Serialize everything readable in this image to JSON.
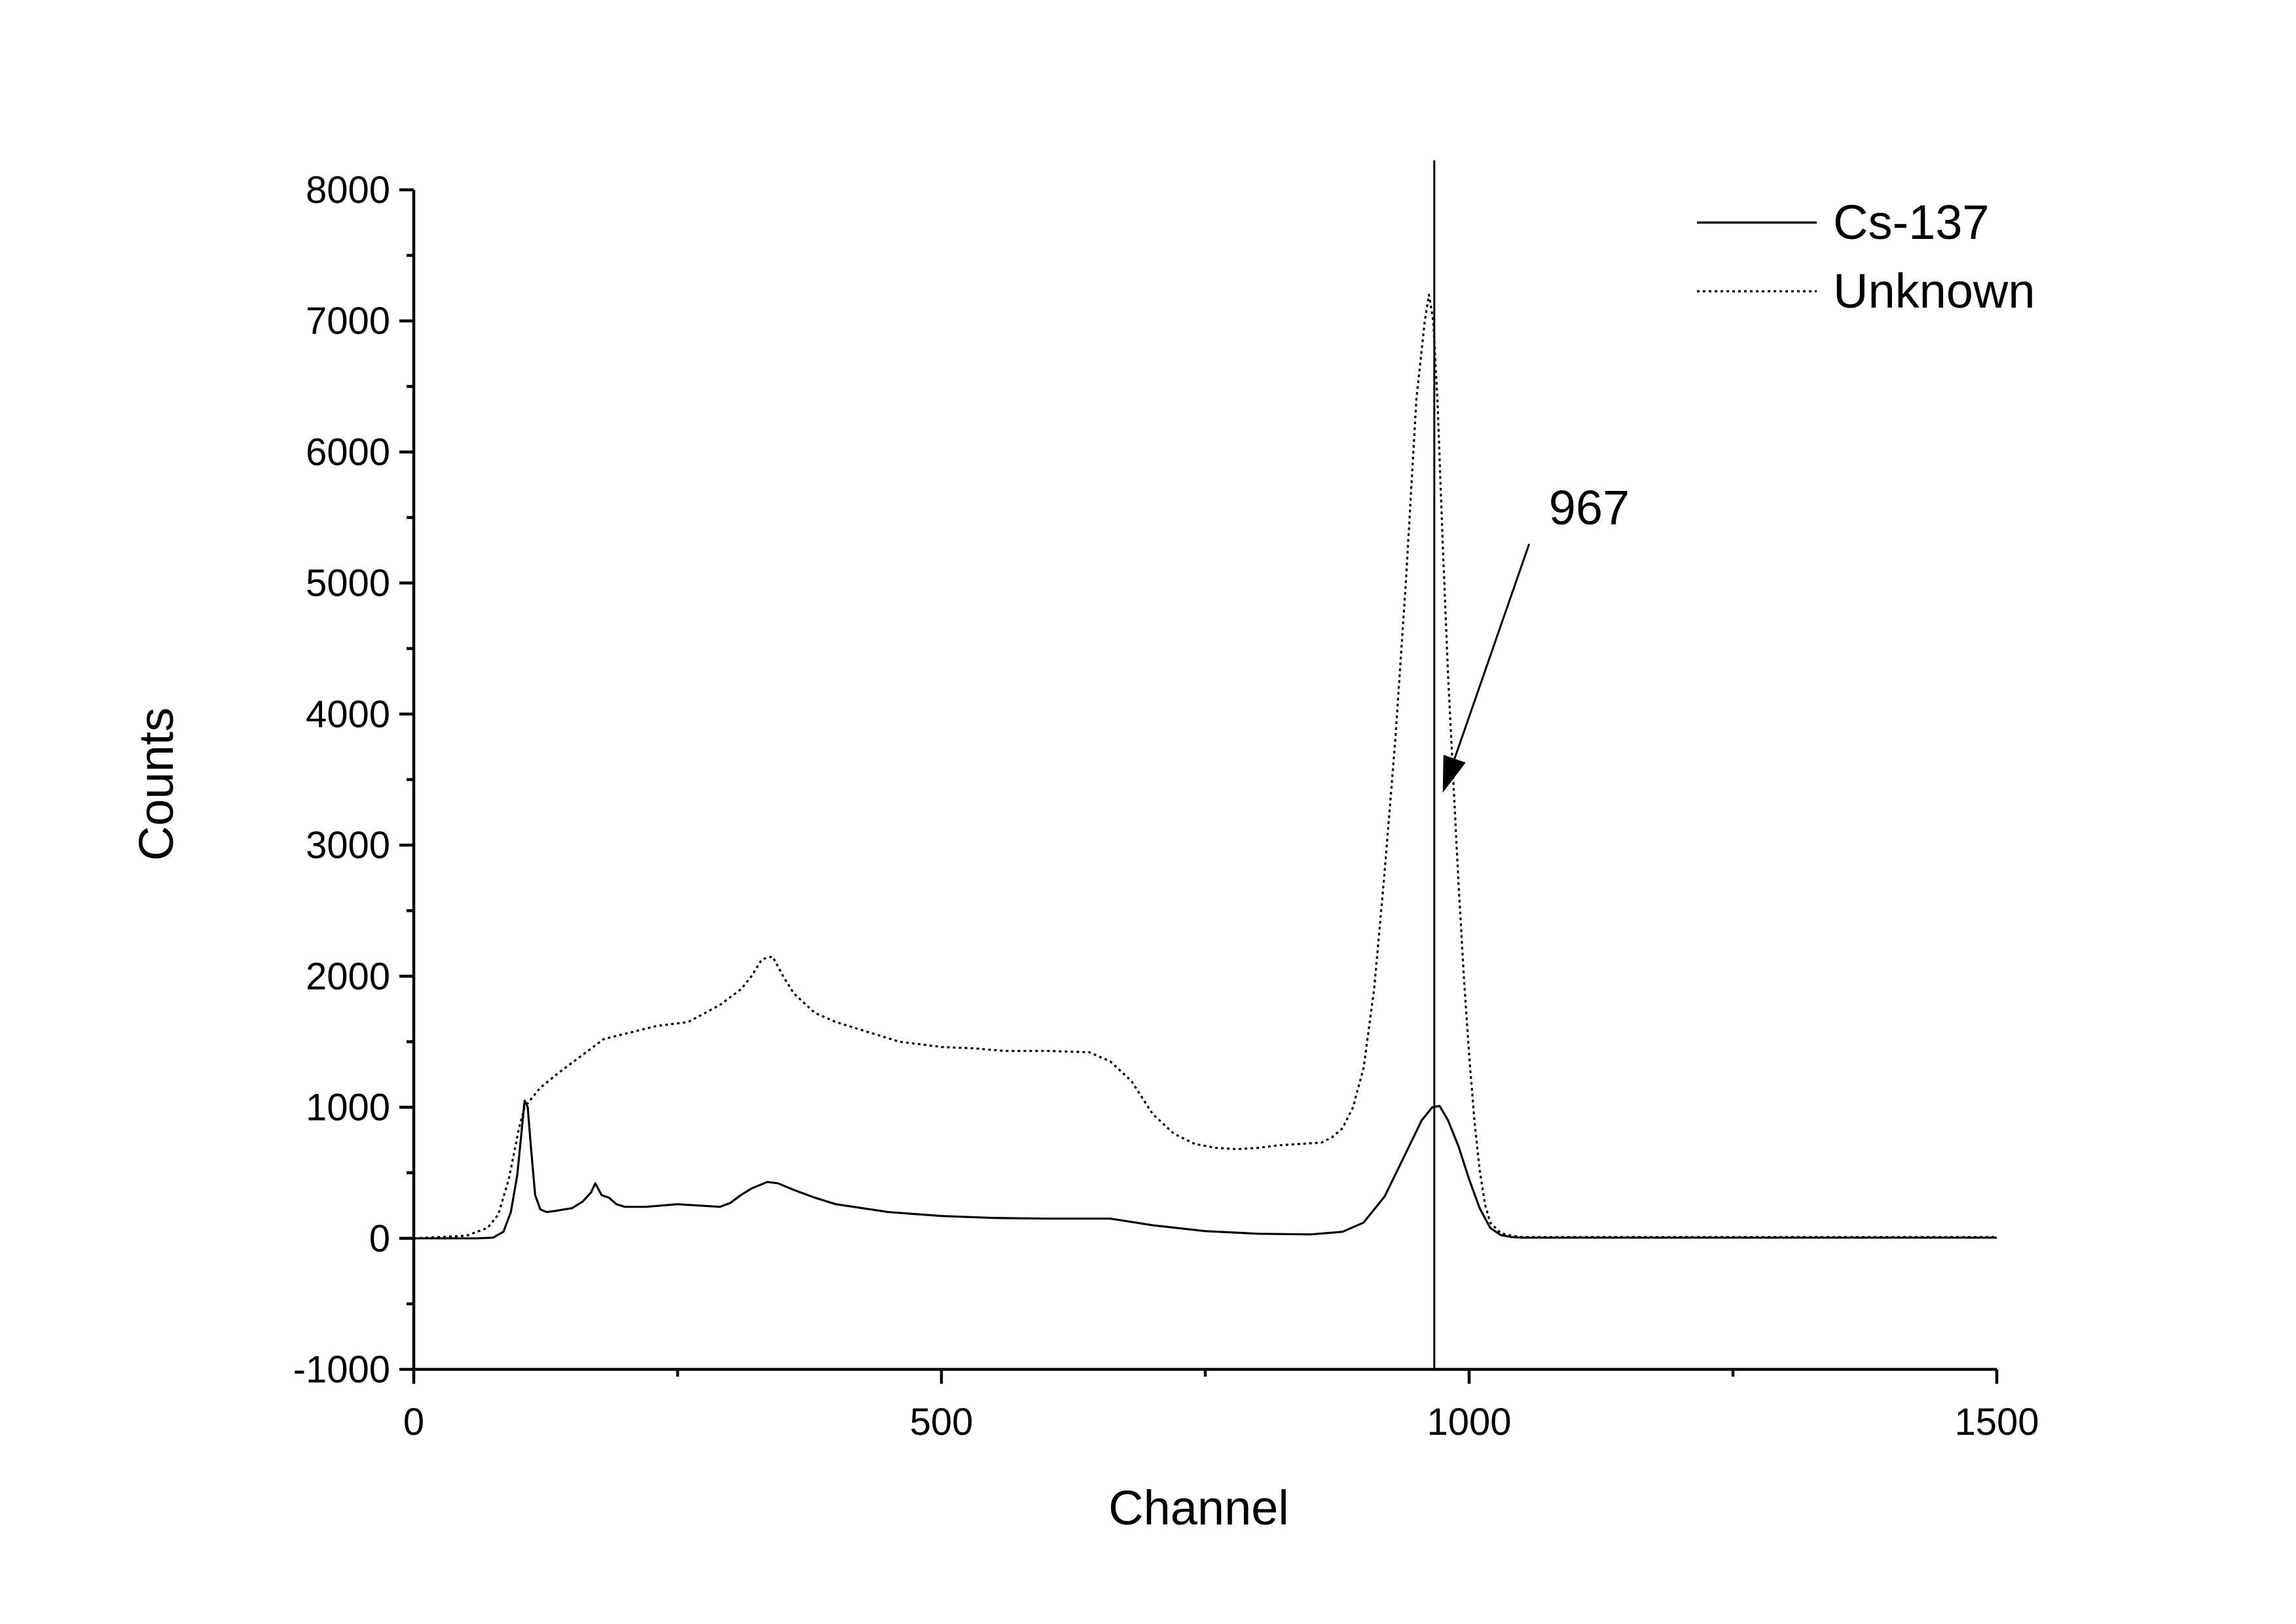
{
  "chart_data": {
    "type": "line",
    "title": "",
    "xlabel": "Channel",
    "ylabel": "Counts",
    "xlim": [
      0,
      1500
    ],
    "ylim": [
      -1000,
      8000
    ],
    "x_ticks": [
      0,
      500,
      1000,
      1500
    ],
    "x_tick_labels": [
      "0",
      "500",
      "1000",
      "1500"
    ],
    "y_ticks": [
      -1000,
      0,
      1000,
      2000,
      3000,
      4000,
      5000,
      6000,
      7000,
      8000
    ],
    "y_tick_labels": [
      "-1000",
      "0",
      "1000",
      "2000",
      "3000",
      "4000",
      "5000",
      "6000",
      "7000",
      "8000"
    ],
    "grid": false,
    "legend_position": "top-right",
    "vertical_line_x": 967,
    "annotation": {
      "text": "967",
      "points_to": [
        975,
        3400
      ]
    },
    "series": [
      {
        "name": "Cs-137",
        "style": "solid",
        "color": "#000000",
        "x": [
          0,
          60,
          75,
          85,
          92,
          98,
          102,
          105,
          108,
          111,
          115,
          120,
          126,
          135,
          150,
          160,
          168,
          172,
          178,
          185,
          192,
          200,
          220,
          250,
          270,
          290,
          300,
          310,
          320,
          335,
          345,
          360,
          380,
          400,
          450,
          500,
          550,
          600,
          630,
          660,
          700,
          750,
          800,
          850,
          880,
          900,
          920,
          940,
          955,
          965,
          972,
          980,
          990,
          1000,
          1010,
          1020,
          1030,
          1040,
          1050,
          1100,
          1200,
          1300,
          1400,
          1500
        ],
        "y": [
          0,
          0,
          5,
          50,
          200,
          480,
          800,
          1050,
          1000,
          700,
          330,
          220,
          200,
          210,
          230,
          280,
          350,
          420,
          330,
          310,
          260,
          240,
          240,
          260,
          250,
          240,
          270,
          330,
          380,
          430,
          420,
          370,
          310,
          260,
          200,
          170,
          155,
          150,
          150,
          150,
          100,
          55,
          35,
          30,
          50,
          120,
          320,
          650,
          900,
          1000,
          1010,
          900,
          700,
          450,
          230,
          80,
          25,
          10,
          5,
          5,
          5,
          5,
          5,
          5
        ]
      },
      {
        "name": "Unknown",
        "style": "dotted",
        "color": "#000000",
        "x": [
          0,
          50,
          70,
          80,
          90,
          100,
          105,
          110,
          120,
          140,
          160,
          180,
          200,
          230,
          260,
          290,
          310,
          320,
          330,
          340,
          350,
          360,
          380,
          400,
          420,
          440,
          460,
          480,
          500,
          530,
          560,
          600,
          640,
          660,
          680,
          700,
          720,
          740,
          760,
          780,
          800,
          820,
          840,
          860,
          870,
          880,
          890,
          900,
          910,
          920,
          930,
          940,
          950,
          958,
          962,
          966,
          970,
          975,
          980,
          985,
          990,
          995,
          1000,
          1005,
          1010,
          1015,
          1020,
          1030,
          1040,
          1050,
          1100,
          1200,
          1300,
          1400,
          1500
        ],
        "y": [
          0,
          20,
          80,
          180,
          450,
          850,
          1000,
          1050,
          1150,
          1280,
          1400,
          1520,
          1560,
          1620,
          1650,
          1780,
          1900,
          2000,
          2130,
          2150,
          2000,
          1870,
          1720,
          1650,
          1600,
          1550,
          1500,
          1480,
          1460,
          1450,
          1430,
          1430,
          1420,
          1350,
          1200,
          950,
          800,
          720,
          690,
          680,
          690,
          710,
          720,
          730,
          770,
          840,
          1000,
          1300,
          1900,
          2800,
          3800,
          5000,
          6400,
          7000,
          7200,
          7000,
          6400,
          5300,
          4300,
          3500,
          2700,
          2000,
          1400,
          900,
          520,
          260,
          120,
          40,
          20,
          10,
          10,
          10,
          10,
          10,
          10
        ]
      }
    ]
  }
}
